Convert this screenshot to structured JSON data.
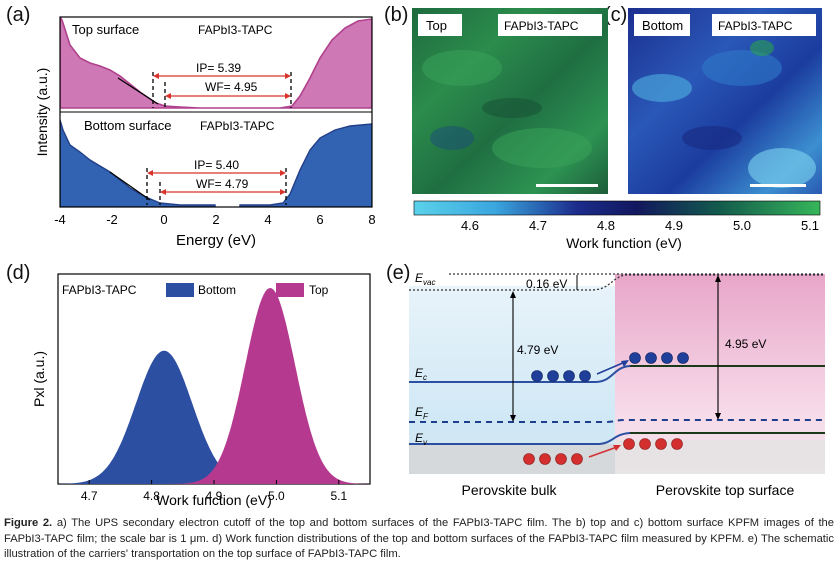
{
  "colors": {
    "pink": "#c25fa6",
    "blue": "#2d4fa2",
    "green": "#2da44a",
    "arrow": "#d9342b"
  },
  "panel_a": {
    "label": "(a)",
    "ylabel": "Intensity (a.u.)",
    "xlabel": "Energy (eV)",
    "xticks": [
      "-4",
      "-2",
      "0",
      "2",
      "4",
      "6",
      "8"
    ],
    "top_title": "Top surface",
    "top_material": "FAPbI3-TAPC",
    "top_ip": "IP= 5.39",
    "top_wf": "WF= 4.95",
    "bottom_title": "Bottom surface",
    "bottom_material": "FAPbI3-TAPC",
    "bottom_ip": "IP= 5.40",
    "bottom_wf": "WF= 4.79"
  },
  "panel_b": {
    "label": "(b)",
    "tag": "Top",
    "material": "FAPbI3-TAPC"
  },
  "panel_c": {
    "label": "(c)",
    "tag": "Bottom",
    "material": "FAPbI3-TAPC"
  },
  "colorbar": {
    "ticks": [
      "4.6",
      "4.7",
      "4.8",
      "4.9",
      "5.0",
      "5.1"
    ],
    "label": "Work function (eV)"
  },
  "chart_data": [
    {
      "type": "area",
      "panel": "d",
      "title": "FAPbI3-TAPC",
      "xlabel": "Work function (eV)",
      "ylabel": "Pxl (a.u.)",
      "xlim": [
        4.65,
        5.15
      ],
      "xticks": [
        "4.7",
        "4.8",
        "4.9",
        "5.0",
        "5.1"
      ],
      "legend": "top",
      "series": [
        {
          "name": "Bottom",
          "color": "#2d4fa2",
          "peak": 4.82,
          "width": 0.045,
          "height": 0.68
        },
        {
          "name": "Top",
          "color": "#b4398f",
          "peak": 4.99,
          "width": 0.04,
          "height": 1.0
        }
      ]
    }
  ],
  "panel_d": {
    "label": "(d)"
  },
  "panel_e": {
    "label": "(e)",
    "evac": "E",
    "evac_sub": "vac",
    "ec": "E",
    "ec_sub": "c",
    "ef": "E",
    "ef_sub": "F",
    "ev": "E",
    "ev_sub": "v",
    "gap": "0.16 eV",
    "wf_bulk": "4.79 eV",
    "wf_top": "4.95 eV",
    "bulk_label": "Perovskite bulk",
    "top_label": "Perovskite top surface"
  },
  "caption": {
    "figure": "Figure 2.",
    "text": " a) The UPS secondary electron cutoff of the top and bottom surfaces of the FAPbI3-TAPC film. The b) top and c) bottom surface KPFM images of the FAPbI3-TAPC film; the scale bar is 1 μm. d) Work function distributions of the top and bottom surfaces of the FAPbI3-TAPC film measured by KPFM. e) The schematic illustration of the carriers' transportation on the top surface of FAPbI3-TAPC film."
  }
}
